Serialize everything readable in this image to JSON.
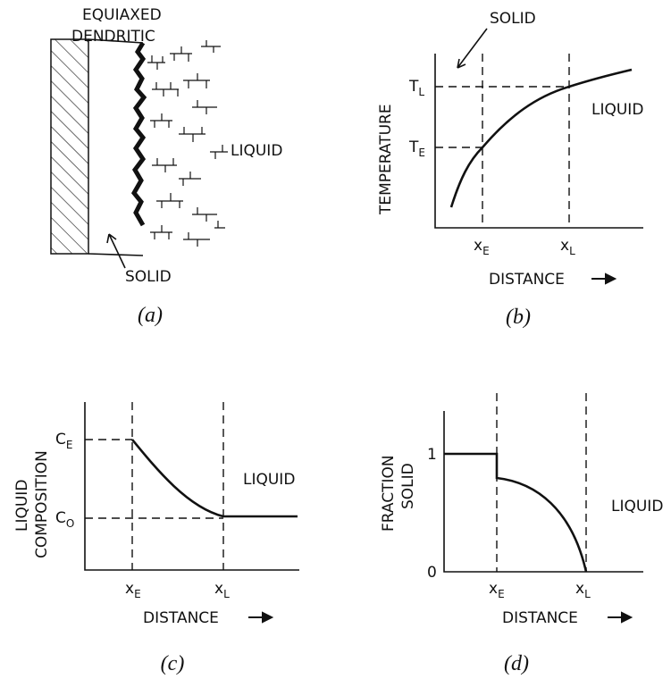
{
  "panel_a": {
    "title": [
      "EQUIAXED",
      "DENDRITIC"
    ],
    "liquid": "LIQUID",
    "solid": "SOLID",
    "caption": "(a)"
  },
  "panel_b": {
    "solid": "SOLID",
    "y_label": "TEMPERATURE",
    "t_l": {
      "main": "T",
      "sub": "L"
    },
    "t_e": {
      "main": "T",
      "sub": "E"
    },
    "liquid": "LIQUID",
    "x_e": {
      "main": "x",
      "sub": "E"
    },
    "x_l": {
      "main": "x",
      "sub": "L"
    },
    "x_label": "DISTANCE",
    "caption": "(b)"
  },
  "panel_c": {
    "y_label": [
      "LIQUID",
      "COMPOSITION"
    ],
    "c_e": {
      "main": "C",
      "sub": "E"
    },
    "c_o": {
      "main": "C",
      "sub": "O"
    },
    "liquid": "LIQUID",
    "x_e": {
      "main": "x",
      "sub": "E"
    },
    "x_l": {
      "main": "x",
      "sub": "L"
    },
    "x_label": "DISTANCE",
    "caption": "(c)"
  },
  "panel_d": {
    "y_label": [
      "FRACTION",
      "SOLID"
    ],
    "one": "1",
    "zero": "0",
    "liquid": "LIQUID",
    "x_e": {
      "main": "x",
      "sub": "E"
    },
    "x_l": {
      "main": "x",
      "sub": "L"
    },
    "x_label": "DISTANCE",
    "caption": "(d)"
  }
}
